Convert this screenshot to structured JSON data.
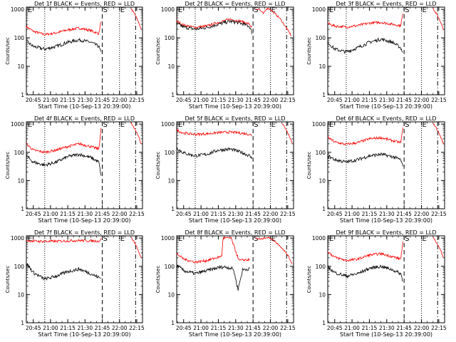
{
  "figure": {
    "panel_titles": [
      "Det 1f BLACK = Events, RED = LLD",
      "Det 2f BLACK = Events, RED = LLD",
      "Det 3f BLACK = Events, RED = LLD",
      "Det 4f BLACK = Events, RED = LLD",
      "Det 5f BLACK = Events, RED = LLD",
      "Det 6f BLACK = Events, RED = LLD",
      "Det 7f BLACK = Events, RED = LLD",
      "Det 8f BLACK = Events, RED = LLD",
      "Det 9f BLACK = Events, RED = LLD"
    ],
    "xlabel": "Start Time (10-Sep-13 20:39:00)",
    "ylabel": "Counts/sec",
    "x_ticks": [
      "20:45",
      "21:00",
      "21:15",
      "21:30",
      "21:45",
      "22:00",
      "22:15"
    ],
    "y_ticks": [
      "1",
      "10",
      "100",
      "1000"
    ],
    "markers": {
      "s": "S",
      "e": "E"
    }
  },
  "chart_data": {
    "type": "line",
    "xlim": [
      "20:39",
      "22:20"
    ],
    "ylim": [
      1,
      1200
    ],
    "y_scale": "log",
    "grid": false,
    "series_colors": {
      "events": "#000000",
      "lld": "#ff0000"
    },
    "vertical_lines": [
      {
        "time": "20:55",
        "style": "dotted"
      },
      {
        "time": "21:45",
        "style": "dashed",
        "marker": "S"
      },
      {
        "time": "22:00",
        "style": "dotted",
        "marker": "E"
      },
      {
        "time": "22:14",
        "style": "dash-dot"
      }
    ],
    "panels": [
      {
        "detector": "1f",
        "lld": {
          "time": [
            "20:39",
            "20:45",
            "20:55",
            "21:05",
            "21:15",
            "21:25",
            "21:35",
            "21:42",
            "21:44"
          ],
          "values": [
            250,
            170,
            130,
            150,
            190,
            220,
            180,
            140,
            400
          ]
        },
        "events": {
          "time": [
            "20:39",
            "20:45",
            "20:55",
            "21:05",
            "21:15",
            "21:25",
            "21:35",
            "21:42",
            "21:44"
          ],
          "values": [
            75,
            50,
            40,
            50,
            70,
            85,
            70,
            50,
            30
          ]
        },
        "lld_post": {
          "time": [
            "22:10",
            "22:13",
            "22:16",
            "22:19"
          ],
          "values": [
            1100,
            700,
            400,
            200
          ]
        }
      },
      {
        "detector": "2f",
        "lld": {
          "time": [
            "20:39",
            "20:45",
            "20:55",
            "21:05",
            "21:15",
            "21:25",
            "21:35",
            "21:42",
            "21:44"
          ],
          "values": [
            380,
            280,
            230,
            260,
            350,
            450,
            380,
            300,
            220
          ]
        },
        "events": {
          "time": [
            "20:39",
            "20:45",
            "20:55",
            "21:05",
            "21:15",
            "21:25",
            "21:35",
            "21:42",
            "21:44"
          ],
          "values": [
            320,
            240,
            200,
            230,
            300,
            380,
            320,
            250,
            150
          ]
        },
        "lld_post": {
          "time": [
            "21:47",
            "21:50",
            "21:54",
            "21:57",
            "22:00",
            "22:04",
            "22:08",
            "22:13",
            "22:18"
          ],
          "values": [
            1000,
            1050,
            700,
            1100,
            1000,
            700,
            500,
            250,
            120
          ]
        }
      },
      {
        "detector": "3f",
        "lld": {
          "time": [
            "20:39",
            "20:45",
            "20:55",
            "21:05",
            "21:15",
            "21:25",
            "21:35",
            "21:42",
            "21:44"
          ],
          "values": [
            320,
            260,
            240,
            270,
            330,
            350,
            300,
            270,
            700
          ]
        },
        "events": {
          "time": [
            "20:39",
            "20:45",
            "20:55",
            "21:05",
            "21:15",
            "21:25",
            "21:35",
            "21:42",
            "21:44"
          ],
          "values": [
            70,
            40,
            32,
            45,
            70,
            90,
            70,
            45,
            30
          ]
        },
        "lld_post": {
          "time": [
            "22:10",
            "22:13",
            "22:16",
            "22:19"
          ],
          "values": [
            1100,
            700,
            400,
            200
          ]
        }
      },
      {
        "detector": "4f",
        "lld": {
          "time": [
            "20:39",
            "20:45",
            "20:55",
            "21:05",
            "21:15",
            "21:25",
            "21:35",
            "21:42",
            "21:44"
          ],
          "values": [
            200,
            120,
            100,
            120,
            160,
            200,
            160,
            130,
            700
          ]
        },
        "events": {
          "time": [
            "20:39",
            "20:45",
            "20:55",
            "21:05",
            "21:15",
            "21:25",
            "21:35",
            "21:42",
            "21:44"
          ],
          "values": [
            75,
            45,
            35,
            45,
            70,
            85,
            65,
            45,
            15
          ]
        },
        "lld_post": {
          "time": [
            "22:10",
            "22:13",
            "22:16",
            "22:19"
          ],
          "values": [
            1100,
            700,
            400,
            200
          ]
        }
      },
      {
        "detector": "5f",
        "lld": {
          "time": [
            "20:39",
            "20:45",
            "20:55",
            "21:05",
            "21:15",
            "21:25",
            "21:35",
            "21:42",
            "21:44"
          ],
          "values": [
            600,
            480,
            430,
            450,
            500,
            520,
            480,
            430,
            400
          ]
        },
        "events": {
          "time": [
            "20:39",
            "20:45",
            "20:55",
            "21:05",
            "21:15",
            "21:25",
            "21:35",
            "21:42",
            "21:44"
          ],
          "values": [
            140,
            95,
            75,
            85,
            120,
            130,
            100,
            75,
            60
          ]
        },
        "lld_post": {
          "time": [
            "22:10",
            "22:13",
            "22:16",
            "22:19"
          ],
          "values": [
            1100,
            700,
            400,
            200
          ]
        }
      },
      {
        "detector": "6f",
        "lld": {
          "time": [
            "20:39",
            "20:45",
            "20:55",
            "21:05",
            "21:15",
            "21:25",
            "21:35",
            "21:42",
            "21:44"
          ],
          "values": [
            350,
            230,
            190,
            220,
            300,
            330,
            260,
            220,
            700
          ]
        },
        "events": {
          "time": [
            "20:39",
            "20:45",
            "20:55",
            "21:05",
            "21:15",
            "21:25",
            "21:35",
            "21:42",
            "21:44"
          ],
          "values": [
            75,
            55,
            45,
            55,
            75,
            85,
            70,
            55,
            30
          ]
        },
        "lld_post": {
          "time": [
            "22:10",
            "22:13",
            "22:16",
            "22:19"
          ],
          "values": [
            1100,
            700,
            400,
            200
          ]
        }
      },
      {
        "detector": "7f",
        "lld": {
          "time": [
            "20:39",
            "20:45",
            "20:55",
            "21:05",
            "21:15",
            "21:25",
            "21:35",
            "21:42",
            "21:44"
          ],
          "values": [
            820,
            780,
            760,
            770,
            800,
            820,
            800,
            780,
            900
          ]
        },
        "events": {
          "time": [
            "20:39",
            "20:45",
            "20:55",
            "21:05",
            "21:15",
            "21:25",
            "21:35",
            "21:42",
            "21:44"
          ],
          "values": [
            130,
            60,
            35,
            45,
            65,
            80,
            55,
            40,
            38
          ]
        },
        "lld_post": {
          "time": [
            "22:10",
            "22:13",
            "22:16",
            "22:19"
          ],
          "values": [
            1100,
            700,
            400,
            200
          ]
        }
      },
      {
        "detector": "8f",
        "lld": {
          "time": [
            "20:39",
            "20:45",
            "20:55",
            "21:05",
            "21:15",
            "21:18",
            "21:19",
            "21:26",
            "21:31",
            "21:33",
            "21:38",
            "21:42"
          ],
          "values": [
            280,
            180,
            140,
            160,
            210,
            230,
            1000,
            1000,
            260,
            160,
            170,
            170
          ]
        },
        "events": {
          "time": [
            "20:39",
            "20:45",
            "20:55",
            "21:05",
            "21:15",
            "21:20",
            "21:24",
            "21:28",
            "21:32",
            "21:36",
            "21:40",
            "21:42"
          ],
          "values": [
            110,
            70,
            55,
            70,
            90,
            95,
            90,
            80,
            15,
            75,
            80,
            80
          ]
        },
        "lld_post": {
          "time": [
            "21:47",
            "21:52",
            "21:56",
            "22:00",
            "22:05",
            "22:10",
            "22:15",
            "22:19"
          ],
          "values": [
            1000,
            900,
            1050,
            1000,
            700,
            450,
            250,
            120
          ]
        }
      },
      {
        "detector": "9f",
        "lld": {
          "time": [
            "20:39",
            "20:45",
            "20:55",
            "21:05",
            "21:15",
            "21:25",
            "21:35",
            "21:42",
            "21:44"
          ],
          "values": [
            330,
            210,
            160,
            180,
            250,
            280,
            220,
            180,
            700
          ]
        },
        "events": {
          "time": [
            "20:39",
            "20:45",
            "20:55",
            "21:05",
            "21:15",
            "21:25",
            "21:35",
            "21:42",
            "21:44"
          ],
          "values": [
            95,
            60,
            45,
            55,
            85,
            100,
            75,
            55,
            30
          ]
        },
        "lld_post": {
          "time": [
            "22:10",
            "22:13",
            "22:16",
            "22:19"
          ],
          "values": [
            1100,
            700,
            400,
            200
          ]
        }
      }
    ]
  }
}
